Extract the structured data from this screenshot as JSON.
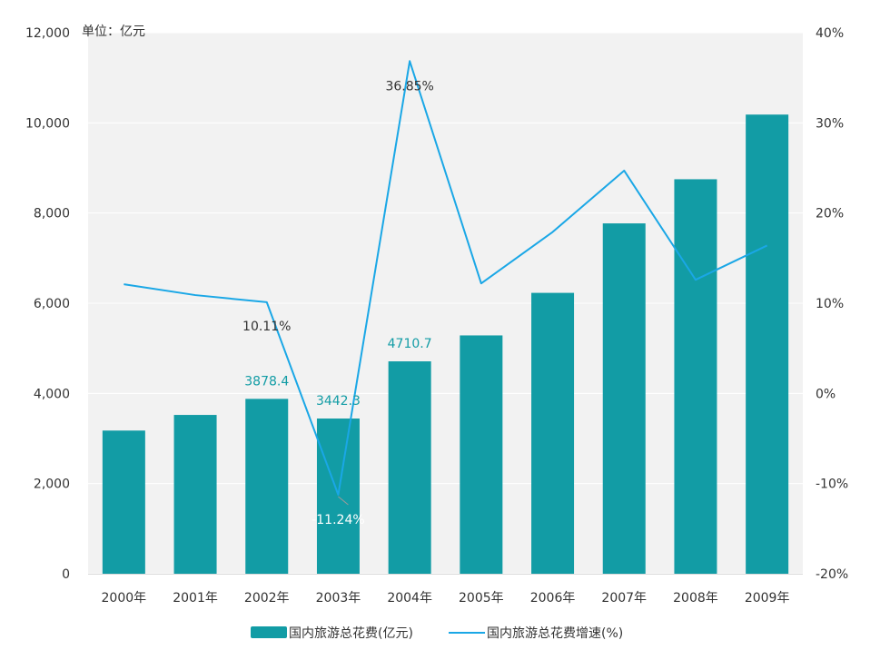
{
  "chart_data": {
    "type": "bar",
    "unit_label": "单位：亿元",
    "categories": [
      "2000年",
      "2001年",
      "2002年",
      "2003年",
      "2004年",
      "2005年",
      "2006年",
      "2007年",
      "2008年",
      "2009年"
    ],
    "series": [
      {
        "name": "国内旅游总花费(亿元)",
        "type": "bar",
        "axis": "left",
        "color": "#129ca5",
        "values": [
          3175.5,
          3522.4,
          3878.4,
          3442.3,
          4710.7,
          5285.9,
          6229.7,
          7770.6,
          8749.3,
          10183.7
        ],
        "data_labels": [
          null,
          null,
          "3878.4",
          "3442.3",
          "4710.7",
          null,
          null,
          null,
          null,
          null
        ]
      },
      {
        "name": "国内旅游总花费增速(%)",
        "type": "line",
        "axis": "right",
        "color": "#1aa7e6",
        "values": [
          12.1,
          10.9,
          10.11,
          -11.24,
          36.85,
          12.2,
          17.9,
          24.7,
          12.6,
          16.4
        ],
        "data_labels": [
          null,
          null,
          "10.11%",
          "-11.24%",
          "36.85%",
          null,
          null,
          null,
          null,
          null
        ]
      }
    ],
    "y_left": {
      "range": [
        0,
        12000
      ],
      "ticks": [
        "0",
        "2,000",
        "4,000",
        "6,000",
        "8,000",
        "10,000",
        "12,000"
      ]
    },
    "y_right": {
      "range": [
        -20,
        40
      ],
      "ticks": [
        "-20%",
        "-10%",
        "0%",
        "10%",
        "20%",
        "30%",
        "40%"
      ]
    },
    "plot_background": "#f2f2f2",
    "grid": true,
    "grid_color": "#ffffff",
    "legend_position": "bottom",
    "title": "",
    "xlabel": "",
    "ylabel": ""
  }
}
